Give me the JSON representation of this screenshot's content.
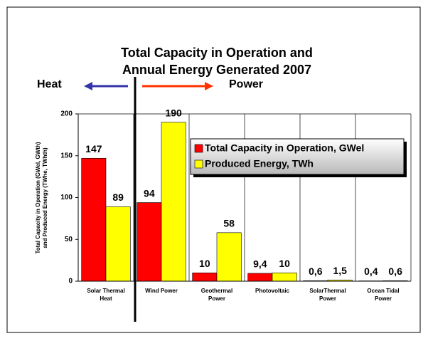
{
  "chart_data": {
    "type": "bar",
    "title": [
      "Total Capacity in Operation and",
      "Annual Energy Generated 2007"
    ],
    "annotations": {
      "left": "Heat",
      "right": "Power"
    },
    "y_label": [
      "Total Capacity in Operation (GWel, GWth)",
      "and Produced Energy (TWhe, TWhth)"
    ],
    "categories": [
      "Solar Thermal Heat",
      "Wind Power",
      "Geothermal Power",
      "Photovoltaic",
      "SolarThermal Power",
      "Ocean Tidal Power"
    ],
    "series": [
      {
        "name": "Total Capacity in Operation, GWel",
        "color": "#ff0000",
        "values": [
          147,
          94,
          10,
          9.4,
          0.6,
          0.4
        ],
        "value_labels": [
          "147",
          "94",
          "10",
          "9,4",
          "0,6",
          "0,4"
        ]
      },
      {
        "name": "Produced Energy, TWh",
        "color": "#ffff00",
        "values": [
          89,
          190,
          58,
          10,
          1.5,
          0.6
        ],
        "value_labels": [
          "89",
          "190",
          "58",
          "10",
          "1,5",
          "0,6"
        ]
      }
    ],
    "ylim": [
      0,
      200
    ],
    "yticks": [
      0,
      50,
      100,
      150,
      200
    ],
    "grid": "vertical",
    "legend": "upper right"
  }
}
